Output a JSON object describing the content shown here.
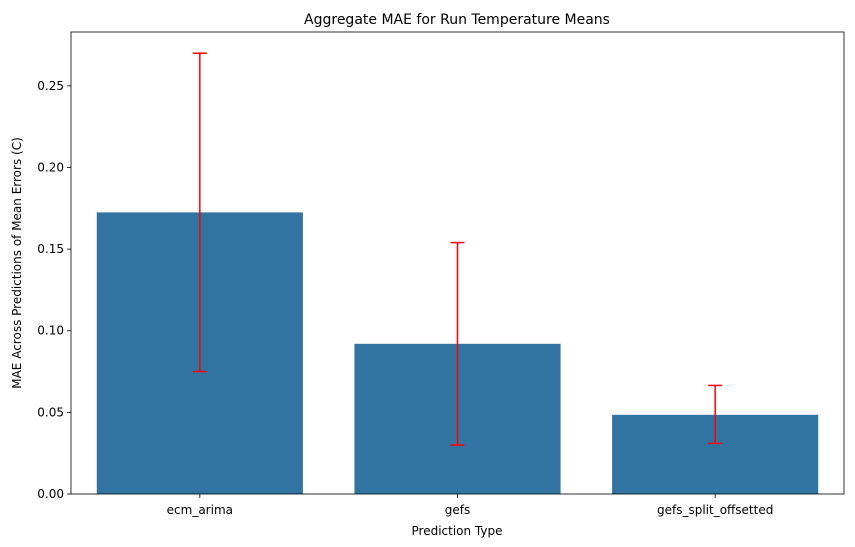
{
  "chart_data": {
    "type": "bar",
    "title": "Aggregate MAE for Run Temperature Means",
    "xlabel": "Prediction Type",
    "ylabel": "MAE Across Predictions of Mean Errors (C)",
    "categories": [
      "ecm_arima",
      "gefs",
      "gefs_split_offsetted"
    ],
    "values": [
      0.1725,
      0.092,
      0.0485
    ],
    "error_low": [
      0.075,
      0.03,
      0.031
    ],
    "error_high": [
      0.27,
      0.154,
      0.0665
    ],
    "ylim": [
      0,
      0.283
    ],
    "yticks": [
      0.0,
      0.05,
      0.1,
      0.15,
      0.2,
      0.25
    ],
    "ytick_labels": [
      "0.00",
      "0.05",
      "0.10",
      "0.15",
      "0.20",
      "0.25"
    ],
    "grid": false,
    "bar_color": "#3274a1",
    "error_color": "#ff0000"
  }
}
